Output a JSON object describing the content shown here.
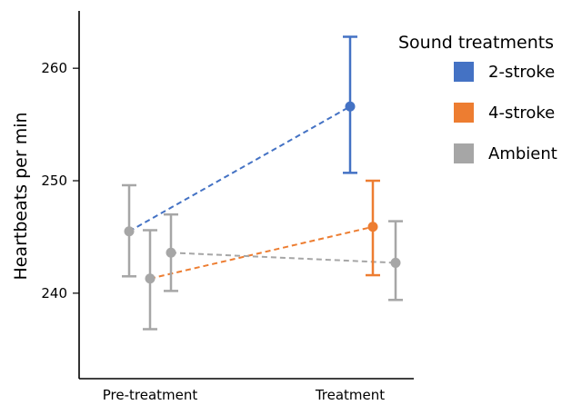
{
  "chart_data": {
    "type": "line",
    "title": "",
    "xlabel": "",
    "ylabel": "Heartbeats per min",
    "ylim": [
      232.4,
      265.1
    ],
    "yticks": [
      240,
      250,
      260
    ],
    "ytick_labels": [
      "240",
      "250",
      "260"
    ],
    "categories": [
      "Pre-treatment",
      "Treatment"
    ],
    "legend": {
      "title": "Sound treatments",
      "placement": "top-right"
    },
    "series": [
      {
        "name": "2-stroke",
        "color": "#4472C4",
        "points": [
          {
            "category": "Pre-treatment",
            "y": 245.5,
            "err_low": 241.5,
            "err_high": 249.6,
            "err_color": "#A6A6A6"
          },
          {
            "category": "Treatment",
            "y": 256.6,
            "err_low": 250.7,
            "err_high": 262.8,
            "err_color": "#4472C4"
          }
        ]
      },
      {
        "name": "4-stroke",
        "color": "#ED7D31",
        "points": [
          {
            "category": "Pre-treatment",
            "y": 241.3,
            "err_low": 236.8,
            "err_high": 245.6,
            "err_color": "#A6A6A6"
          },
          {
            "category": "Treatment",
            "y": 245.9,
            "err_low": 241.6,
            "err_high": 250.0,
            "err_color": "#ED7D31"
          }
        ]
      },
      {
        "name": "Ambient",
        "color": "#A6A6A6",
        "points": [
          {
            "category": "Pre-treatment",
            "y": 243.6,
            "err_low": 240.2,
            "err_high": 247.0,
            "err_color": "#A6A6A6"
          },
          {
            "category": "Treatment",
            "y": 242.7,
            "err_low": 239.4,
            "err_high": 246.4,
            "err_color": "#A6A6A6"
          }
        ]
      }
    ]
  }
}
